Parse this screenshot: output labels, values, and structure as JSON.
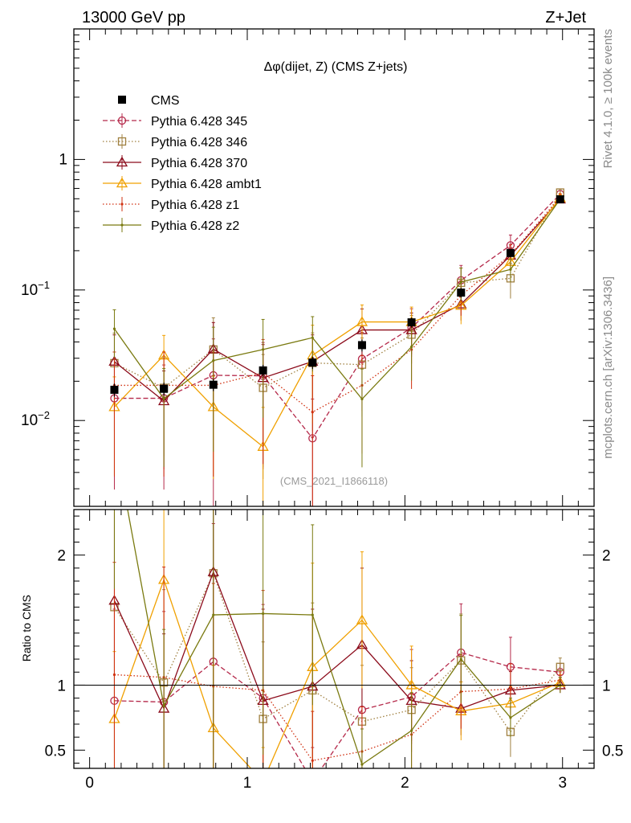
{
  "header": {
    "left": "13000 GeV pp",
    "right": "Z+Jet"
  },
  "side": {
    "rivet": "Rivet 4.1.0, ≥ 100k events",
    "mcplots": "mcplots.cern.ch [arXiv:1306.3436]"
  },
  "chart_data": {
    "type": "line",
    "title": "Δφ(dijet, Z) (CMS Z+jets)",
    "watermark": "(CMS_2021_I1866118)",
    "yscale": "log",
    "ylim": [
      0.0022,
      10
    ],
    "xlim": [
      -0.1,
      3.2
    ],
    "xticks": [
      0,
      1,
      2,
      3
    ],
    "xtick_labels": [
      "0",
      "1",
      "2",
      "3"
    ],
    "yticks_main": [
      0.01,
      0.1,
      1
    ],
    "yticks_main_base": [
      "10",
      "10",
      "1"
    ],
    "yticks_main_exp": [
      "−2",
      "−1",
      ""
    ],
    "ratio": {
      "ylabel": "Ratio to CMS",
      "ylim": [
        0.36,
        2.35
      ],
      "yticks": [
        0.5,
        1,
        2
      ],
      "ytick_labels": [
        "0.5",
        "1",
        "2"
      ]
    },
    "x": [
      0.157,
      0.471,
      0.785,
      1.1,
      1.414,
      1.728,
      2.042,
      2.356,
      2.67,
      2.985
    ],
    "data": {
      "name": "CMS",
      "values": [
        0.0172,
        0.0175,
        0.0188,
        0.0242,
        0.0278,
        0.0378,
        0.0565,
        0.0955,
        0.192,
        0.495
      ],
      "errors": [
        0.002,
        0.002,
        0.002,
        0.0025,
        0.003,
        0.004,
        0.005,
        0.008,
        0.014,
        0.03
      ],
      "color": "#000000"
    },
    "series": [
      {
        "name": "Pythia 6.428 345",
        "color": "#b5294a",
        "dash": "6,3",
        "marker": "circle",
        "values": [
          0.0148,
          0.0148,
          0.0222,
          0.022,
          0.0073,
          0.0296,
          0.0513,
          0.1186,
          0.2198,
          0.543
        ],
        "ratio": [
          0.88,
          0.87,
          1.18,
          0.9,
          0.26,
          0.81,
          0.91,
          1.25,
          1.14,
          1.1
        ],
        "rel_err": [
          0.8,
          0.8,
          0.9,
          0.8,
          1.0,
          0.6,
          0.4,
          0.3,
          0.2,
          0.06
        ]
      },
      {
        "name": "Pythia 6.428 346",
        "color": "#a08040",
        "dash": "1.5,2.5",
        "marker": "square",
        "values": [
          0.0275,
          0.0178,
          0.035,
          0.0178,
          0.0276,
          0.0268,
          0.0455,
          0.1135,
          0.1228,
          0.558
        ],
        "ratio": [
          1.6,
          1.02,
          1.86,
          0.74,
          0.96,
          0.72,
          0.81,
          1.19,
          0.64,
          1.14
        ],
        "rel_err": [
          0.7,
          0.7,
          0.75,
          0.8,
          0.7,
          0.6,
          0.4,
          0.3,
          0.3,
          0.06
        ]
      },
      {
        "name": "Pythia 6.428 370",
        "color": "#8b0a1a",
        "dash": "",
        "marker": "triangle",
        "values": [
          0.0283,
          0.0141,
          0.0352,
          0.0212,
          0.0283,
          0.0494,
          0.0494,
          0.0778,
          0.1838,
          0.495
        ],
        "ratio": [
          1.65,
          0.82,
          1.87,
          0.88,
          0.99,
          1.31,
          0.88,
          0.82,
          0.96,
          1.0
        ],
        "rel_err": [
          0.6,
          0.7,
          0.6,
          0.8,
          0.6,
          0.45,
          0.35,
          0.25,
          0.15,
          0.06
        ]
      },
      {
        "name": "Pythia 6.428 ambt1",
        "color": "#f0a000",
        "dash": "",
        "marker": "triangle",
        "values": [
          0.0127,
          0.0316,
          0.0127,
          0.0063,
          0.0316,
          0.0569,
          0.0569,
          0.0759,
          0.1645,
          0.507
        ],
        "ratio": [
          0.74,
          1.81,
          0.67,
          0.26,
          1.14,
          1.5,
          1.0,
          0.8,
          0.86,
          1.02
        ],
        "rel_err": [
          0.7,
          0.42,
          0.72,
          1.0,
          0.7,
          0.35,
          0.3,
          0.28,
          0.15,
          0.06
        ]
      },
      {
        "name": "Pythia 6.428 z1",
        "color": "#d03010",
        "dash": "1.5,2.5",
        "marker": "dot",
        "values": [
          0.0186,
          0.0186,
          0.0186,
          0.0232,
          0.0116,
          0.0186,
          0.0349,
          0.0907,
          0.1858,
          0.515
        ],
        "ratio": [
          1.08,
          1.06,
          0.99,
          0.96,
          0.42,
          0.49,
          0.62,
          0.95,
          0.97,
          1.04
        ],
        "rel_err": [
          0.8,
          0.8,
          0.8,
          0.8,
          0.9,
          0.7,
          0.5,
          0.3,
          0.2,
          0.06
        ]
      },
      {
        "name": "Pythia 6.428 z2",
        "color": "#7a7a10",
        "dash": "",
        "marker": "dot",
        "values": [
          0.0504,
          0.0147,
          0.0288,
          0.035,
          0.0431,
          0.0146,
          0.0367,
          0.115,
          0.1436,
          0.497
        ],
        "ratio": [
          2.9,
          0.84,
          1.54,
          1.55,
          1.54,
          0.39,
          0.65,
          1.2,
          0.75,
          1.0
        ],
        "rel_err": [
          0.4,
          0.7,
          0.8,
          0.7,
          0.45,
          0.7,
          0.45,
          0.28,
          0.2,
          0.06
        ]
      }
    ]
  }
}
